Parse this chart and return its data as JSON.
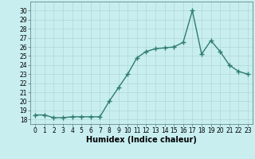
{
  "x": [
    0,
    1,
    2,
    3,
    4,
    5,
    6,
    7,
    8,
    9,
    10,
    11,
    12,
    13,
    14,
    15,
    16,
    17,
    18,
    19,
    20,
    21,
    22,
    23
  ],
  "y": [
    18.5,
    18.5,
    18.2,
    18.2,
    18.3,
    18.3,
    18.3,
    18.3,
    20.0,
    21.5,
    23.0,
    24.8,
    25.5,
    25.8,
    25.9,
    26.0,
    26.5,
    30.0,
    25.2,
    26.7,
    25.5,
    24.0,
    23.3,
    23.0
  ],
  "line_color": "#2e7d6e",
  "marker_color": "#2e7d6e",
  "bg_color": "#c8eef0",
  "grid_color": "#b0d8d8",
  "xlabel": "Humidex (Indice chaleur)",
  "ylim": [
    17.5,
    31
  ],
  "xlim": [
    -0.5,
    23.5
  ],
  "yticks": [
    18,
    19,
    20,
    21,
    22,
    23,
    24,
    25,
    26,
    27,
    28,
    29,
    30
  ],
  "xtick_labels": [
    "0",
    "1",
    "2",
    "3",
    "4",
    "5",
    "6",
    "7",
    "8",
    "9",
    "10",
    "11",
    "12",
    "13",
    "14",
    "15",
    "16",
    "17",
    "18",
    "19",
    "20",
    "21",
    "22",
    "23"
  ],
  "tick_fontsize": 5.5,
  "xlabel_fontsize": 7,
  "line_width": 1.0,
  "marker_size": 2.5
}
